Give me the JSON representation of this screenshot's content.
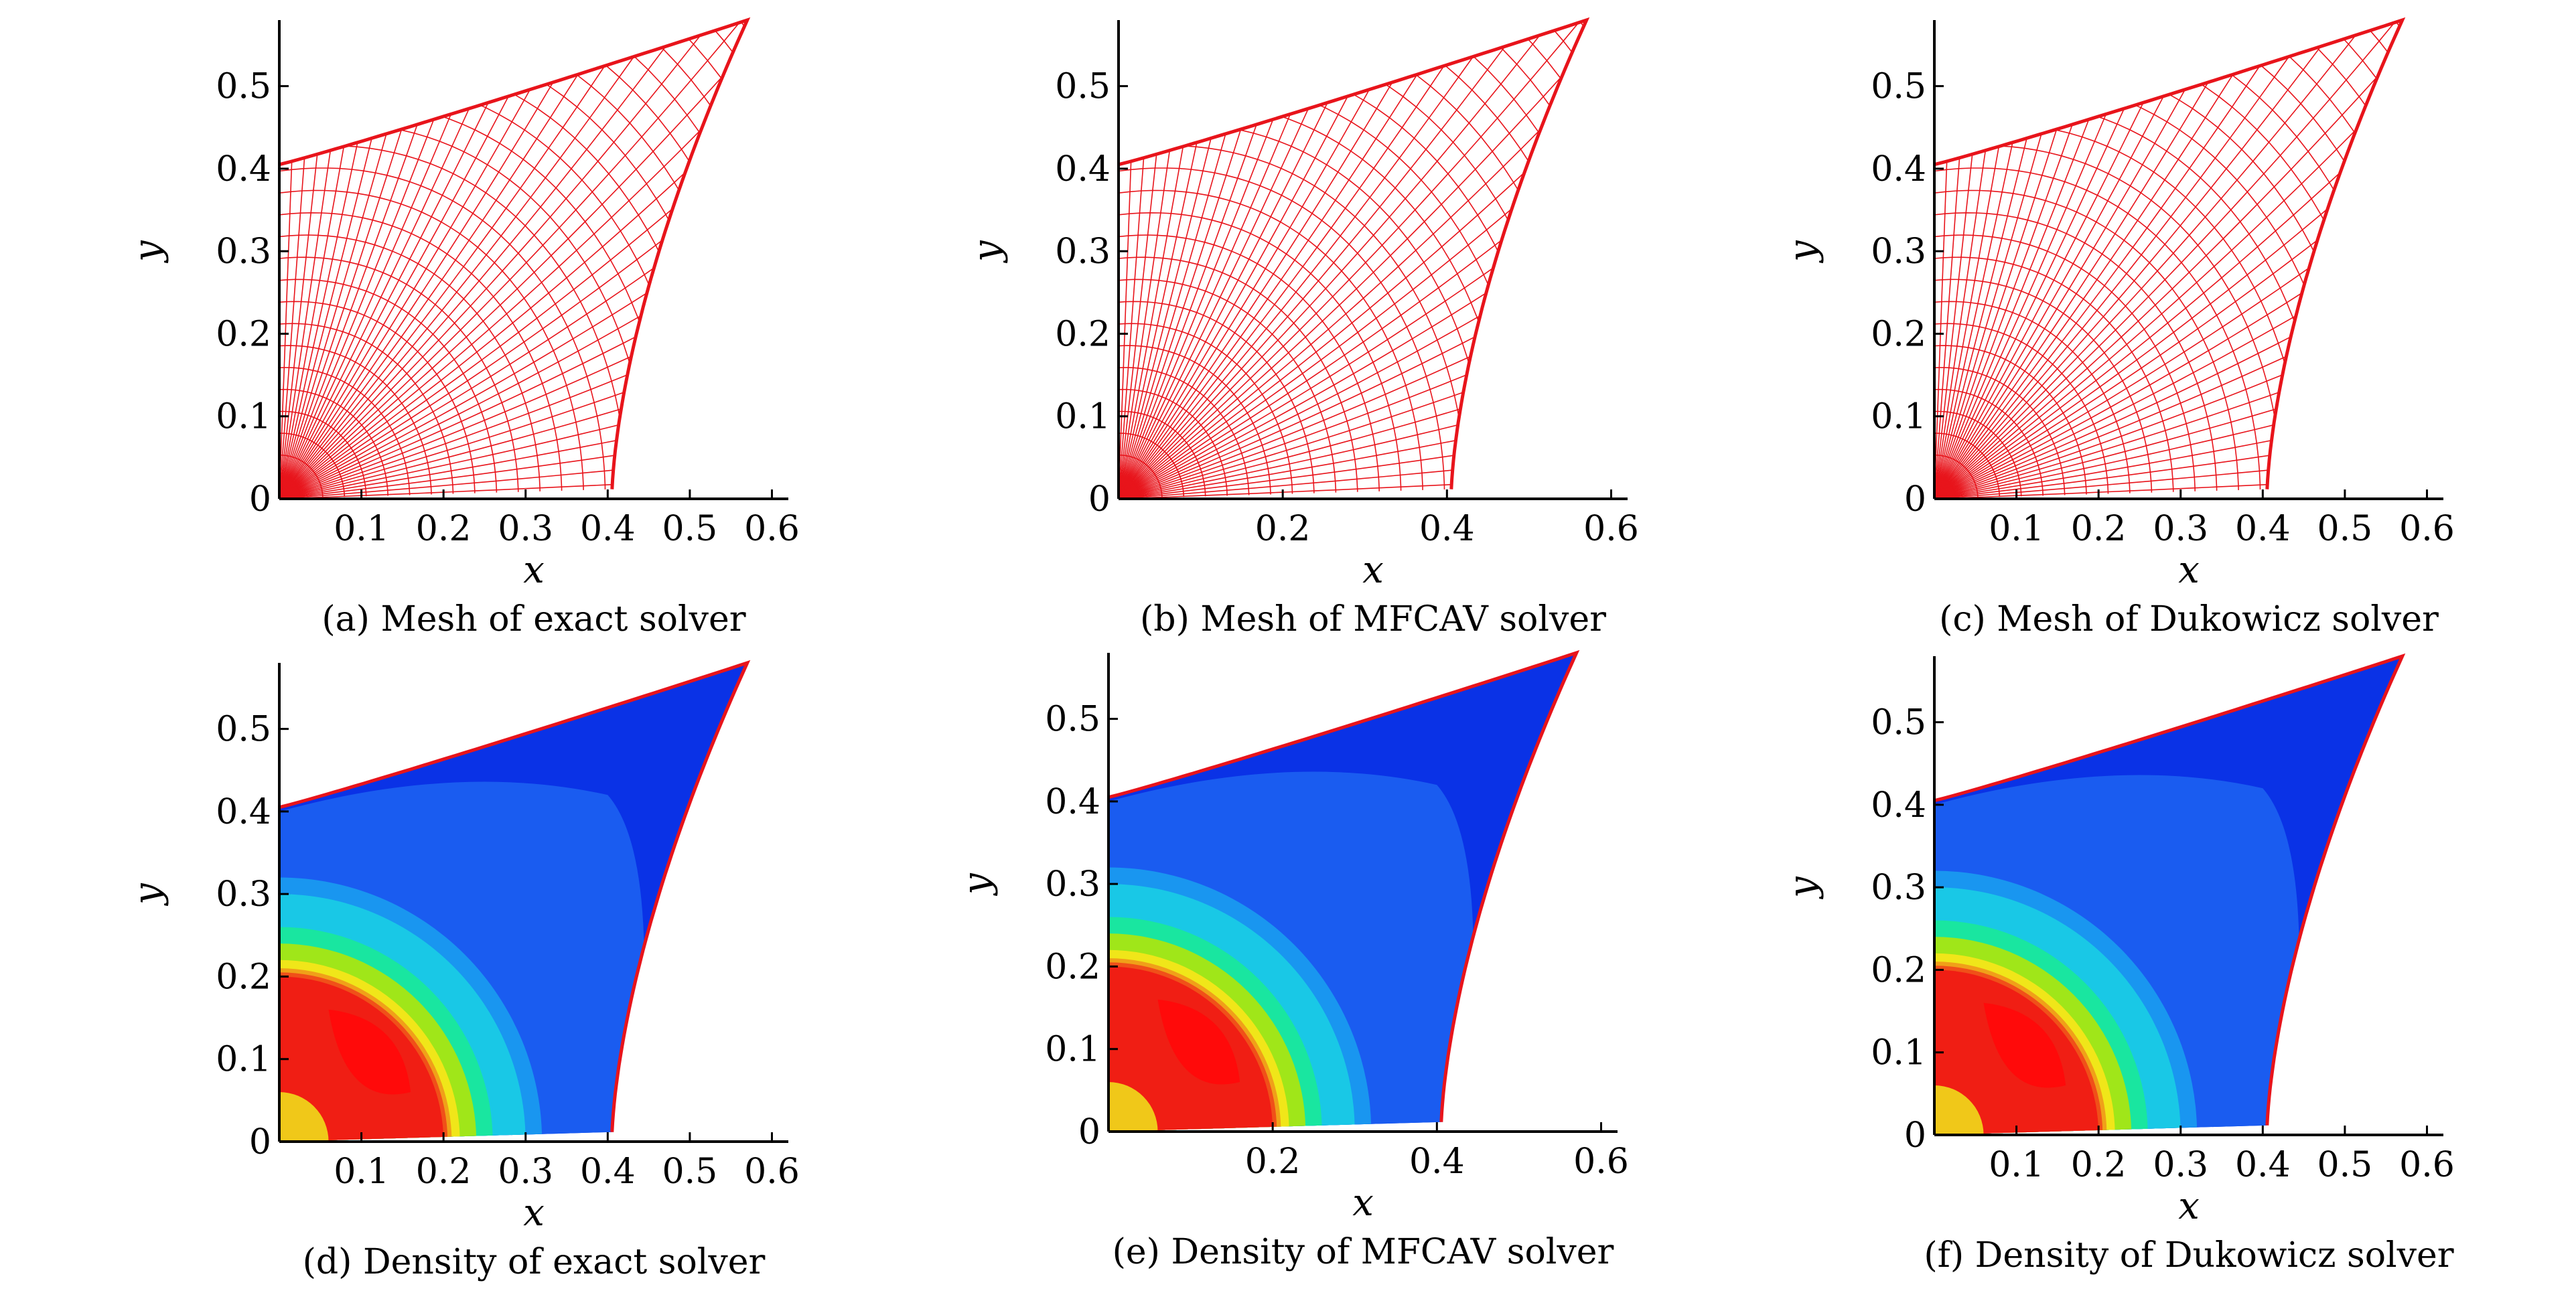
{
  "figure": {
    "panels": [
      {
        "id": "a",
        "kind": "mesh",
        "caption": "(a) Mesh of exact solver",
        "xticks": [
          "0.1",
          "0.2",
          "0.3",
          "0.4",
          "0.5",
          "0.6"
        ],
        "yticks": [
          "0",
          "0.1",
          "0.2",
          "0.3",
          "0.4",
          "0.5"
        ],
        "xlabel": "x",
        "ylabel": "y",
        "boundary_color": "#e8141b"
      },
      {
        "id": "b",
        "kind": "mesh",
        "caption": "(b) Mesh of MFCAV solver",
        "xticks": [
          "0.2",
          "0.4",
          "0.6"
        ],
        "yticks": [
          "0",
          "0.1",
          "0.2",
          "0.3",
          "0.4",
          "0.5"
        ],
        "xlabel": "x",
        "ylabel": "y",
        "boundary_color": "#e8141b"
      },
      {
        "id": "c",
        "kind": "mesh",
        "caption": "(c) Mesh of Dukowicz solver",
        "xticks": [
          "0.1",
          "0.2",
          "0.3",
          "0.4",
          "0.5",
          "0.6"
        ],
        "yticks": [
          "0",
          "0.1",
          "0.2",
          "0.3",
          "0.4",
          "0.5"
        ],
        "xlabel": "x",
        "ylabel": "y",
        "boundary_color": "#e8141b"
      },
      {
        "id": "d",
        "kind": "density",
        "caption": "(d) Density of exact solver",
        "xticks": [
          "0.1",
          "0.2",
          "0.3",
          "0.4",
          "0.5",
          "0.6"
        ],
        "yticks": [
          "0",
          "0.1",
          "0.2",
          "0.3",
          "0.4",
          "0.5"
        ],
        "xlabel": "x",
        "ylabel": "y",
        "boundary_color": "#e8141b"
      },
      {
        "id": "e",
        "kind": "density",
        "caption": "(e) Density of MFCAV solver",
        "xticks": [
          "0.2",
          "0.4",
          "0.6"
        ],
        "yticks": [
          "0",
          "0.1",
          "0.2",
          "0.3",
          "0.4",
          "0.5"
        ],
        "xlabel": "x",
        "ylabel": "y",
        "boundary_color": "#000000"
      },
      {
        "id": "f",
        "kind": "density",
        "caption": "(f) Density of Dukowicz solver",
        "xticks": [
          "0.1",
          "0.2",
          "0.3",
          "0.4",
          "0.5",
          "0.6"
        ],
        "yticks": [
          "0",
          "0.1",
          "0.2",
          "0.3",
          "0.4",
          "0.5"
        ],
        "xlabel": "x",
        "ylabel": "y",
        "boundary_color": "#e8141b"
      }
    ],
    "colors": {
      "mesh": "#e8141b",
      "density_levels": [
        "#0a32e6",
        "#1a5cf0",
        "#1996f0",
        "#19c8e6",
        "#19e6a0",
        "#a0e619",
        "#f0e619",
        "#f0a019",
        "#f05019",
        "#f01e14"
      ]
    }
  },
  "chart_data": [
    {
      "type": "mesh",
      "title": "(a) Mesh of exact solver",
      "xlabel": "x",
      "ylabel": "y",
      "xlim": [
        0,
        0.62
      ],
      "ylim": [
        0,
        0.58
      ],
      "boundary": [
        [
          0,
          0.405
        ],
        [
          0.1,
          0.43
        ],
        [
          0.3,
          0.5
        ],
        [
          0.48,
          0.56
        ],
        [
          0.57,
          0.58
        ],
        [
          0.57,
          0.52
        ],
        [
          0.52,
          0.38
        ],
        [
          0.47,
          0.24
        ],
        [
          0.43,
          0.12
        ],
        [
          0.405,
          0
        ]
      ]
    },
    {
      "type": "mesh",
      "title": "(b) Mesh of MFCAV solver",
      "xlabel": "x",
      "ylabel": "y",
      "xlim": [
        0,
        0.62
      ],
      "ylim": [
        0,
        0.58
      ],
      "boundary": [
        [
          0,
          0.405
        ],
        [
          0.1,
          0.43
        ],
        [
          0.3,
          0.5
        ],
        [
          0.48,
          0.56
        ],
        [
          0.57,
          0.58
        ],
        [
          0.57,
          0.52
        ],
        [
          0.52,
          0.38
        ],
        [
          0.47,
          0.24
        ],
        [
          0.43,
          0.12
        ],
        [
          0.405,
          0
        ]
      ]
    },
    {
      "type": "mesh",
      "title": "(c) Mesh of Dukowicz solver",
      "xlabel": "x",
      "ylabel": "y",
      "xlim": [
        0,
        0.62
      ],
      "ylim": [
        0,
        0.58
      ],
      "boundary": [
        [
          0,
          0.405
        ],
        [
          0.1,
          0.43
        ],
        [
          0.3,
          0.5
        ],
        [
          0.48,
          0.56
        ],
        [
          0.57,
          0.58
        ],
        [
          0.57,
          0.52
        ],
        [
          0.52,
          0.38
        ],
        [
          0.47,
          0.24
        ],
        [
          0.43,
          0.12
        ],
        [
          0.405,
          0
        ]
      ]
    },
    {
      "type": "heatmap",
      "title": "(d) Density of exact solver",
      "xlabel": "x",
      "ylabel": "y",
      "xlim": [
        0,
        0.62
      ],
      "ylim": [
        0,
        0.58
      ],
      "shock_radius": 0.2,
      "contour_radii": [
        0.32,
        0.3,
        0.26,
        0.24,
        0.22,
        0.21,
        0.205,
        0.2
      ]
    },
    {
      "type": "heatmap",
      "title": "(e) Density of MFCAV solver",
      "xlabel": "x",
      "ylabel": "y",
      "xlim": [
        0,
        0.62
      ],
      "ylim": [
        0,
        0.58
      ],
      "shock_radius": 0.2,
      "contour_radii": [
        0.32,
        0.3,
        0.26,
        0.24,
        0.22,
        0.21,
        0.205,
        0.2
      ]
    },
    {
      "type": "heatmap",
      "title": "(f) Density of Dukowicz solver",
      "xlabel": "x",
      "ylabel": "y",
      "xlim": [
        0,
        0.62
      ],
      "ylim": [
        0,
        0.58
      ],
      "shock_radius": 0.2,
      "contour_radii": [
        0.32,
        0.3,
        0.26,
        0.24,
        0.22,
        0.21,
        0.205,
        0.2
      ]
    }
  ]
}
